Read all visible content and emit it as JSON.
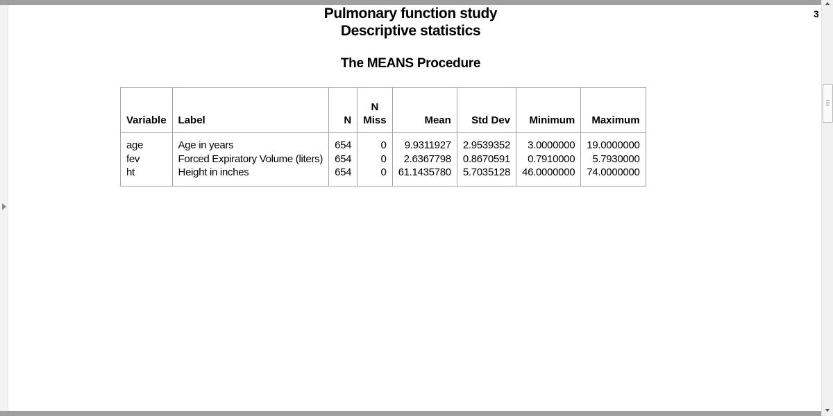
{
  "page_number": "3",
  "titles": {
    "title1": "Pulmonary function study",
    "title2": "Descriptive statistics",
    "procedure": "The MEANS Procedure"
  },
  "table": {
    "headers": {
      "variable": "Variable",
      "label": "Label",
      "n": "N",
      "nmiss_line1": "N",
      "nmiss_line2": "Miss",
      "mean": "Mean",
      "stddev": "Std Dev",
      "minimum": "Minimum",
      "maximum": "Maximum"
    },
    "rows": [
      {
        "variable": "age",
        "label": "Age in years",
        "n": "654",
        "nmiss": "0",
        "mean": "9.9311927",
        "stddev": "2.9539352",
        "minimum": "3.0000000",
        "maximum": "19.0000000"
      },
      {
        "variable": "fev",
        "label": "Forced Expiratory Volume (liters)",
        "n": "654",
        "nmiss": "0",
        "mean": "2.6367798",
        "stddev": "0.8670591",
        "minimum": "0.7910000",
        "maximum": "5.7930000"
      },
      {
        "variable": "ht",
        "label": "Height in inches",
        "n": "654",
        "nmiss": "0",
        "mean": "61.1435780",
        "stddev": "5.7035128",
        "minimum": "46.0000000",
        "maximum": "74.0000000"
      }
    ]
  }
}
